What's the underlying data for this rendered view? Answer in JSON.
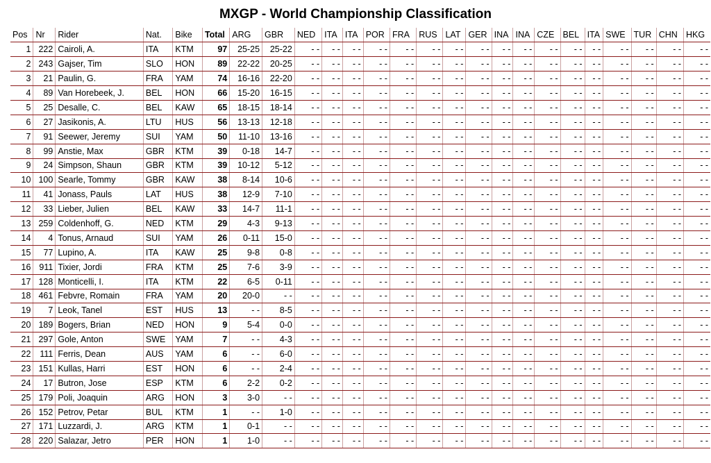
{
  "title": "MXGP - World Championship Classification",
  "columns": [
    "Pos",
    "Nr",
    "Rider",
    "Nat.",
    "Bike",
    "Total",
    "ARG",
    "GBR",
    "NED",
    "ITA",
    "ITA",
    "POR",
    "FRA",
    "RUS",
    "LAT",
    "GER",
    "INA",
    "INA",
    "CZE",
    "BEL",
    "ITA",
    "SWE",
    "TUR",
    "CHN",
    "HKG"
  ],
  "empty_cell": "- -",
  "rows": [
    {
      "pos": "1",
      "nr": "222",
      "rider": "Cairoli, A.",
      "nat": "ITA",
      "bike": "KTM",
      "total": "97",
      "arg": "25-25",
      "gbr": "25-22"
    },
    {
      "pos": "2",
      "nr": "243",
      "rider": "Gajser, Tim",
      "nat": "SLO",
      "bike": "HON",
      "total": "89",
      "arg": "22-22",
      "gbr": "20-25"
    },
    {
      "pos": "3",
      "nr": "21",
      "rider": "Paulin, G.",
      "nat": "FRA",
      "bike": "YAM",
      "total": "74",
      "arg": "16-16",
      "gbr": "22-20"
    },
    {
      "pos": "4",
      "nr": "89",
      "rider": "Van Horebeek, J.",
      "nat": "BEL",
      "bike": "HON",
      "total": "66",
      "arg": "15-20",
      "gbr": "16-15"
    },
    {
      "pos": "5",
      "nr": "25",
      "rider": "Desalle, C.",
      "nat": "BEL",
      "bike": "KAW",
      "total": "65",
      "arg": "18-15",
      "gbr": "18-14"
    },
    {
      "pos": "6",
      "nr": "27",
      "rider": "Jasikonis, A.",
      "nat": "LTU",
      "bike": "HUS",
      "total": "56",
      "arg": "13-13",
      "gbr": "12-18"
    },
    {
      "pos": "7",
      "nr": "91",
      "rider": "Seewer, Jeremy",
      "nat": "SUI",
      "bike": "YAM",
      "total": "50",
      "arg": "11-10",
      "gbr": "13-16"
    },
    {
      "pos": "8",
      "nr": "99",
      "rider": "Anstie, Max",
      "nat": "GBR",
      "bike": "KTM",
      "total": "39",
      "arg": "0-18",
      "gbr": "14-7"
    },
    {
      "pos": "9",
      "nr": "24",
      "rider": "Simpson, Shaun",
      "nat": "GBR",
      "bike": "KTM",
      "total": "39",
      "arg": "10-12",
      "gbr": "5-12"
    },
    {
      "pos": "10",
      "nr": "100",
      "rider": "Searle, Tommy",
      "nat": "GBR",
      "bike": "KAW",
      "total": "38",
      "arg": "8-14",
      "gbr": "10-6"
    },
    {
      "pos": "11",
      "nr": "41",
      "rider": "Jonass, Pauls",
      "nat": "LAT",
      "bike": "HUS",
      "total": "38",
      "arg": "12-9",
      "gbr": "7-10"
    },
    {
      "pos": "12",
      "nr": "33",
      "rider": "Lieber, Julien",
      "nat": "BEL",
      "bike": "KAW",
      "total": "33",
      "arg": "14-7",
      "gbr": "11-1"
    },
    {
      "pos": "13",
      "nr": "259",
      "rider": "Coldenhoff, G.",
      "nat": "NED",
      "bike": "KTM",
      "total": "29",
      "arg": "4-3",
      "gbr": "9-13"
    },
    {
      "pos": "14",
      "nr": "4",
      "rider": "Tonus, Arnaud",
      "nat": "SUI",
      "bike": "YAM",
      "total": "26",
      "arg": "0-11",
      "gbr": "15-0"
    },
    {
      "pos": "15",
      "nr": "77",
      "rider": "Lupino, A.",
      "nat": "ITA",
      "bike": "KAW",
      "total": "25",
      "arg": "9-8",
      "gbr": "0-8"
    },
    {
      "pos": "16",
      "nr": "911",
      "rider": "Tixier, Jordi",
      "nat": "FRA",
      "bike": "KTM",
      "total": "25",
      "arg": "7-6",
      "gbr": "3-9"
    },
    {
      "pos": "17",
      "nr": "128",
      "rider": "Monticelli, I.",
      "nat": "ITA",
      "bike": "KTM",
      "total": "22",
      "arg": "6-5",
      "gbr": "0-11"
    },
    {
      "pos": "18",
      "nr": "461",
      "rider": "Febvre, Romain",
      "nat": "FRA",
      "bike": "YAM",
      "total": "20",
      "arg": "20-0",
      "gbr": "- -"
    },
    {
      "pos": "19",
      "nr": "7",
      "rider": "Leok, Tanel",
      "nat": "EST",
      "bike": "HUS",
      "total": "13",
      "arg": "- -",
      "gbr": "8-5"
    },
    {
      "pos": "20",
      "nr": "189",
      "rider": "Bogers, Brian",
      "nat": "NED",
      "bike": "HON",
      "total": "9",
      "arg": "5-4",
      "gbr": "0-0"
    },
    {
      "pos": "21",
      "nr": "297",
      "rider": "Gole, Anton",
      "nat": "SWE",
      "bike": "YAM",
      "total": "7",
      "arg": "- -",
      "gbr": "4-3"
    },
    {
      "pos": "22",
      "nr": "111",
      "rider": "Ferris, Dean",
      "nat": "AUS",
      "bike": "YAM",
      "total": "6",
      "arg": "- -",
      "gbr": "6-0"
    },
    {
      "pos": "23",
      "nr": "151",
      "rider": "Kullas, Harri",
      "nat": "EST",
      "bike": "HON",
      "total": "6",
      "arg": "- -",
      "gbr": "2-4"
    },
    {
      "pos": "24",
      "nr": "17",
      "rider": "Butron, Jose",
      "nat": "ESP",
      "bike": "KTM",
      "total": "6",
      "arg": "2-2",
      "gbr": "0-2"
    },
    {
      "pos": "25",
      "nr": "179",
      "rider": "Poli, Joaquin",
      "nat": "ARG",
      "bike": "HON",
      "total": "3",
      "arg": "3-0",
      "gbr": "- -"
    },
    {
      "pos": "26",
      "nr": "152",
      "rider": "Petrov, Petar",
      "nat": "BUL",
      "bike": "KTM",
      "total": "1",
      "arg": "- -",
      "gbr": "1-0"
    },
    {
      "pos": "27",
      "nr": "171",
      "rider": "Luzzardi, J.",
      "nat": "ARG",
      "bike": "KTM",
      "total": "1",
      "arg": "0-1",
      "gbr": "- -"
    },
    {
      "pos": "28",
      "nr": "220",
      "rider": "Salazar, Jetro",
      "nat": "PER",
      "bike": "HON",
      "total": "1",
      "arg": "1-0",
      "gbr": "- -"
    }
  ]
}
